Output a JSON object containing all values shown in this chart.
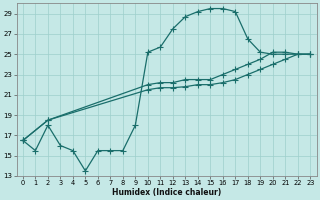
{
  "xlabel": "Humidex (Indice chaleur)",
  "ylabel": "",
  "xlim": [
    -0.5,
    23.5
  ],
  "ylim": [
    13,
    30
  ],
  "yticks": [
    13,
    15,
    17,
    19,
    21,
    23,
    25,
    27,
    29
  ],
  "xticks": [
    0,
    1,
    2,
    3,
    4,
    5,
    6,
    7,
    8,
    9,
    10,
    11,
    12,
    13,
    14,
    15,
    16,
    17,
    18,
    19,
    20,
    21,
    22,
    23
  ],
  "bg_color": "#c5e8e6",
  "grid_color": "#9ecfcc",
  "line_color": "#1a6e6b",
  "line_width": 0.9,
  "marker_size": 2.2,
  "line1_x": [
    0,
    1,
    2,
    3,
    4,
    5,
    6,
    7,
    8,
    9,
    10,
    11,
    12,
    13,
    14,
    15,
    16,
    17,
    18,
    19,
    20,
    21,
    22,
    23
  ],
  "line1_y": [
    16.5,
    15.5,
    18,
    16,
    15.5,
    13.5,
    15.5,
    15.5,
    15.5,
    18,
    25.2,
    25.7,
    27.5,
    28.7,
    29.2,
    29.5,
    29.5,
    29.2,
    26.5,
    25.2,
    25,
    25,
    25,
    25
  ],
  "line2_x": [
    0,
    2,
    10,
    11,
    12,
    13,
    14,
    15,
    16,
    17,
    18,
    19,
    20,
    21,
    22,
    23
  ],
  "line2_y": [
    16.5,
    18.5,
    22,
    22.2,
    22.2,
    22.5,
    22.5,
    22.5,
    23,
    23.5,
    24,
    24.5,
    25.2,
    25.2,
    25,
    25
  ],
  "line3_x": [
    0,
    2,
    10,
    11,
    12,
    13,
    14,
    15,
    16,
    17,
    18,
    19,
    20,
    21,
    22,
    23
  ],
  "line3_y": [
    16.5,
    18.5,
    21.5,
    21.7,
    21.7,
    21.8,
    22,
    22,
    22.2,
    22.5,
    23,
    23.5,
    24,
    24.5,
    25,
    25
  ]
}
